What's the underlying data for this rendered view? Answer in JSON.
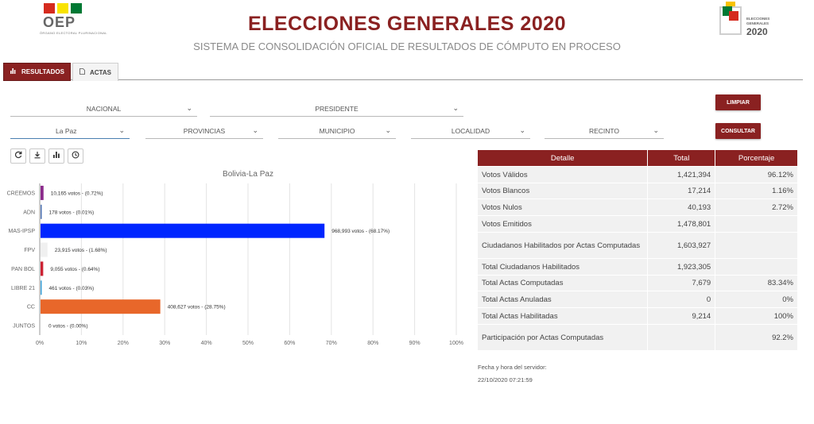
{
  "header": {
    "logo_left_text": "OEP",
    "logo_left_org": "ÓRGANO ELECTORAL PLURINACIONAL",
    "title": "ELECCIONES GENERALES 2020",
    "subtitle": "SISTEMA DE CONSOLIDACIÓN OFICIAL DE RESULTADOS DE CÓMPUTO EN PROCESO",
    "logo_right_line1": "ELECCIONES",
    "logo_right_line2": "GENERALES",
    "logo_right_year": "2020",
    "flag_colors": [
      "#d52b1e",
      "#f9e300",
      "#007934"
    ]
  },
  "tabs": [
    {
      "label": "RESULTADOS",
      "icon": "bar-chart-icon",
      "active": true
    },
    {
      "label": "ACTAS",
      "icon": "document-icon",
      "active": false
    }
  ],
  "filters": {
    "ambito": "NACIONAL",
    "eleccion": "PRESIDENTE",
    "departamento": "La Paz",
    "provincia": "PROVINCIAS",
    "municipio": "MUNICIPIO",
    "localidad": "LOCALIDAD",
    "recinto": "RECINTO",
    "limpiar_label": "LIMPIAR",
    "consultar_label": "CONSULTAR"
  },
  "toolbar": [
    "refresh-icon",
    "download-icon",
    "bar-chart-icon",
    "clock-icon"
  ],
  "chart_data": {
    "type": "bar",
    "orientation": "horizontal",
    "title": "Bolivia-La Paz",
    "categories": [
      "CREEMOS",
      "ADN",
      "MAS-IPSP",
      "FPV",
      "PAN BOL",
      "LIBRE 21",
      "CC",
      "JUNTOS"
    ],
    "values": [
      0.72,
      0.01,
      68.17,
      1.68,
      0.64,
      0.03,
      28.75,
      0.0
    ],
    "labels": [
      "10,165 votos - (0.72%)",
      "178 votos - (0.01%)",
      "968,993 votos - (68.17%)",
      "23,915 votos - (1.68%)",
      "9,055 votos - (0.64%)",
      "461 votos - (0.03%)",
      "408,627 votos - (28.75%)",
      "0 votos - (0.00%)"
    ],
    "colors": [
      "#8b2a8b",
      "#4a6fb0",
      "#0026ff",
      "#f0f0f0",
      "#cc2233",
      "#3aa0d8",
      "#e8672a",
      "#2a9d3a"
    ],
    "xlim": [
      0,
      100
    ],
    "xticks": [
      "0%",
      "10%",
      "20%",
      "30%",
      "40%",
      "50%",
      "60%",
      "70%",
      "80%",
      "90%",
      "100%"
    ],
    "grid": true
  },
  "table": {
    "headers": [
      "Detalle",
      "Total",
      "Porcentaje"
    ],
    "rows": [
      [
        "Votos Válidos",
        "1,421,394",
        "96.12%"
      ],
      [
        "Votos Blancos",
        "17,214",
        "1.16%"
      ],
      [
        "Votos Nulos",
        "40,193",
        "2.72%"
      ],
      [
        "Votos Emitidos",
        "1,478,801",
        ""
      ],
      [
        "Ciudadanos Habilitados por Actas Computadas",
        "1,603,927",
        ""
      ],
      [
        "Total Ciudadanos Habilitados",
        "1,923,305",
        ""
      ],
      [
        "Total Actas Computadas",
        "7,679",
        "83.34%"
      ],
      [
        "Total Actas Anuladas",
        "0",
        "0%"
      ],
      [
        "Total Actas Habilitadas",
        "9,214",
        "100%"
      ],
      [
        "Participación por Actas Computadas",
        "",
        "92.2%"
      ]
    ]
  },
  "server": {
    "label": "Fecha y hora del servidor:",
    "datetime": "22/10/2020 07:21:59"
  }
}
